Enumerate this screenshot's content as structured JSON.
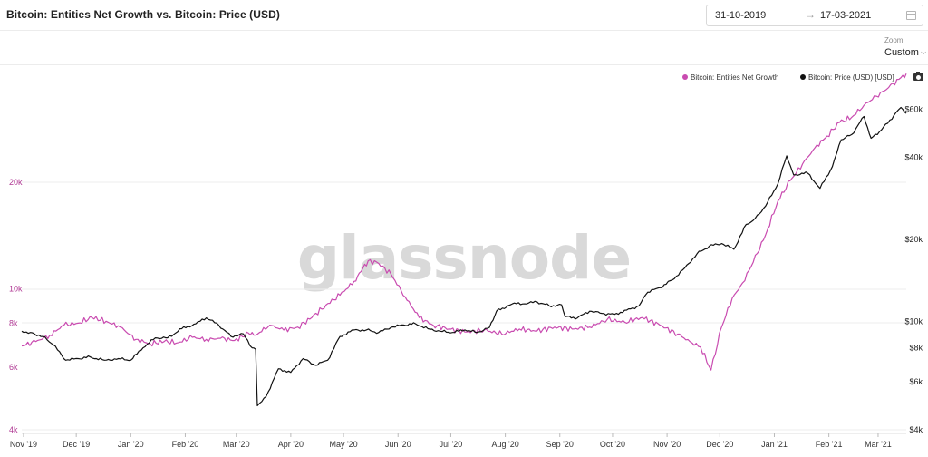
{
  "header": {
    "title": "Bitcoin: Entities Net Growth vs. Bitcoin: Price (USD)",
    "date_from": "31-10-2019",
    "date_arrow": "→",
    "date_to": "17-03-2021"
  },
  "zoom": {
    "label": "Zoom",
    "value": "Custom",
    "chevron": "⌵"
  },
  "watermark": "glassnode",
  "colors": {
    "entities": "#c94bb0",
    "price": "#111111",
    "grid": "#eeeeee"
  },
  "icons": {
    "calendar": "calendar-icon",
    "camera": "camera-icon"
  },
  "chart_data": {
    "type": "line",
    "title": "Bitcoin: Entities Net Growth vs. Bitcoin: Price (USD)",
    "x_ticks": [
      "Nov '19",
      "Dec '19",
      "Jan '20",
      "Feb '20",
      "Mar '20",
      "Apr '20",
      "May '20",
      "Jun '20",
      "Jul '20",
      "Aug '20",
      "Sep '20",
      "Oct '20",
      "Nov '20",
      "Dec '20",
      "Jan '21",
      "Feb '21",
      "Mar '21"
    ],
    "x_tick_dates": [
      "2019-11-01",
      "2019-12-01",
      "2020-01-01",
      "2020-02-01",
      "2020-03-01",
      "2020-04-01",
      "2020-05-01",
      "2020-06-01",
      "2020-07-01",
      "2020-08-01",
      "2020-09-01",
      "2020-10-01",
      "2020-11-01",
      "2020-12-01",
      "2021-01-01",
      "2021-02-01",
      "2021-03-01"
    ],
    "xlim": [
      "2019-10-31",
      "2021-03-17"
    ],
    "y_left": {
      "scale": "log",
      "ticks": [
        "4k",
        "6k",
        "8k",
        "10k",
        "20k"
      ],
      "tick_values": [
        4000,
        6000,
        8000,
        10000,
        20000
      ],
      "color": "#b03a94"
    },
    "y_right": {
      "scale": "log",
      "ticks": [
        "$4k",
        "$6k",
        "$8k",
        "$10k",
        "$20k",
        "$40k",
        "$60k"
      ],
      "tick_values": [
        4000,
        6000,
        8000,
        10000,
        20000,
        40000,
        60000
      ]
    },
    "legend_position": "top-right",
    "series": [
      {
        "name": "Bitcoin: Entities Net Growth",
        "axis": "left",
        "color": "#c94bb0",
        "x": [
          "2019-10-31",
          "2019-11-08",
          "2019-11-16",
          "2019-11-24",
          "2019-12-02",
          "2019-12-10",
          "2019-12-18",
          "2019-12-26",
          "2020-01-04",
          "2020-01-12",
          "2020-01-20",
          "2020-01-28",
          "2020-02-05",
          "2020-02-13",
          "2020-02-21",
          "2020-02-29",
          "2020-03-08",
          "2020-03-12",
          "2020-03-20",
          "2020-03-28",
          "2020-04-05",
          "2020-04-13",
          "2020-04-21",
          "2020-04-29",
          "2020-05-07",
          "2020-05-11",
          "2020-05-15",
          "2020-05-21",
          "2020-05-28",
          "2020-06-05",
          "2020-06-13",
          "2020-06-21",
          "2020-06-30",
          "2020-07-10",
          "2020-07-20",
          "2020-07-30",
          "2020-08-09",
          "2020-08-19",
          "2020-08-29",
          "2020-09-08",
          "2020-09-18",
          "2020-09-28",
          "2020-10-08",
          "2020-10-18",
          "2020-10-28",
          "2020-11-07",
          "2020-11-14",
          "2020-11-20",
          "2020-11-26",
          "2020-12-02",
          "2020-12-08",
          "2020-12-14",
          "2020-12-20",
          "2020-12-27",
          "2021-01-03",
          "2021-01-10",
          "2021-01-17",
          "2021-01-24",
          "2021-01-31",
          "2021-02-07",
          "2021-02-14",
          "2021-02-21",
          "2021-02-28",
          "2021-03-07",
          "2021-03-14",
          "2021-03-17"
        ],
        "y": [
          6900,
          7100,
          7400,
          7900,
          8000,
          8300,
          8100,
          7800,
          7200,
          7000,
          7100,
          7050,
          7300,
          7200,
          7250,
          7150,
          7500,
          7400,
          7900,
          7650,
          7800,
          8300,
          9000,
          9600,
          10500,
          11200,
          12000,
          11800,
          11000,
          9500,
          8300,
          7900,
          7700,
          7550,
          7650,
          7450,
          7700,
          7600,
          7800,
          7700,
          7800,
          8200,
          8050,
          8300,
          7900,
          7450,
          7100,
          6850,
          5900,
          7800,
          9400,
          10400,
          11900,
          14200,
          17700,
          20200,
          22500,
          25000,
          27000,
          29500,
          30500,
          33000,
          35000,
          37000,
          39500,
          40500
        ]
      },
      {
        "name": "Bitcoin: Price (USD) [USD]",
        "axis": "right",
        "color": "#111111",
        "x": [
          "2019-10-31",
          "2019-11-05",
          "2019-11-12",
          "2019-11-18",
          "2019-11-25",
          "2019-12-02",
          "2019-12-09",
          "2019-12-17",
          "2019-12-25",
          "2020-01-01",
          "2020-01-08",
          "2020-01-15",
          "2020-01-22",
          "2020-01-30",
          "2020-02-07",
          "2020-02-13",
          "2020-02-20",
          "2020-02-27",
          "2020-03-05",
          "2020-03-10",
          "2020-03-12",
          "2020-03-13",
          "2020-03-18",
          "2020-03-25",
          "2020-04-01",
          "2020-04-08",
          "2020-04-15",
          "2020-04-22",
          "2020-04-29",
          "2020-05-07",
          "2020-05-14",
          "2020-05-21",
          "2020-05-28",
          "2020-06-04",
          "2020-06-11",
          "2020-06-18",
          "2020-06-25",
          "2020-07-02",
          "2020-07-09",
          "2020-07-16",
          "2020-07-23",
          "2020-07-27",
          "2020-08-05",
          "2020-08-12",
          "2020-08-19",
          "2020-08-26",
          "2020-09-02",
          "2020-09-04",
          "2020-09-11",
          "2020-09-18",
          "2020-09-25",
          "2020-10-02",
          "2020-10-09",
          "2020-10-16",
          "2020-10-21",
          "2020-10-28",
          "2020-11-04",
          "2020-11-11",
          "2020-11-18",
          "2020-11-25",
          "2020-12-02",
          "2020-12-09",
          "2020-12-16",
          "2020-12-20",
          "2020-12-27",
          "2021-01-03",
          "2021-01-08",
          "2021-01-12",
          "2021-01-20",
          "2021-01-27",
          "2021-02-03",
          "2021-02-08",
          "2021-02-14",
          "2021-02-21",
          "2021-02-25",
          "2021-03-03",
          "2021-03-10",
          "2021-03-14",
          "2021-03-17"
        ],
        "y": [
          9200,
          9100,
          8800,
          8200,
          7200,
          7300,
          7400,
          7200,
          7300,
          7200,
          8000,
          8700,
          8700,
          9400,
          9800,
          10300,
          9700,
          8800,
          9000,
          8000,
          7900,
          4900,
          5300,
          6700,
          6500,
          7300,
          6900,
          7200,
          8800,
          9300,
          9300,
          9100,
          9500,
          9700,
          9800,
          9400,
          9200,
          9100,
          9300,
          9100,
          9500,
          10900,
          11600,
          11600,
          11800,
          11400,
          11500,
          10400,
          10300,
          10900,
          10700,
          10600,
          11000,
          11400,
          12800,
          13300,
          14200,
          15700,
          17700,
          18900,
          19300,
          18400,
          22700,
          23500,
          26500,
          32000,
          40500,
          34500,
          35000,
          30800,
          37000,
          46400,
          48500,
          56500,
          47000,
          50500,
          57000,
          61000,
          58000
        ]
      }
    ]
  }
}
